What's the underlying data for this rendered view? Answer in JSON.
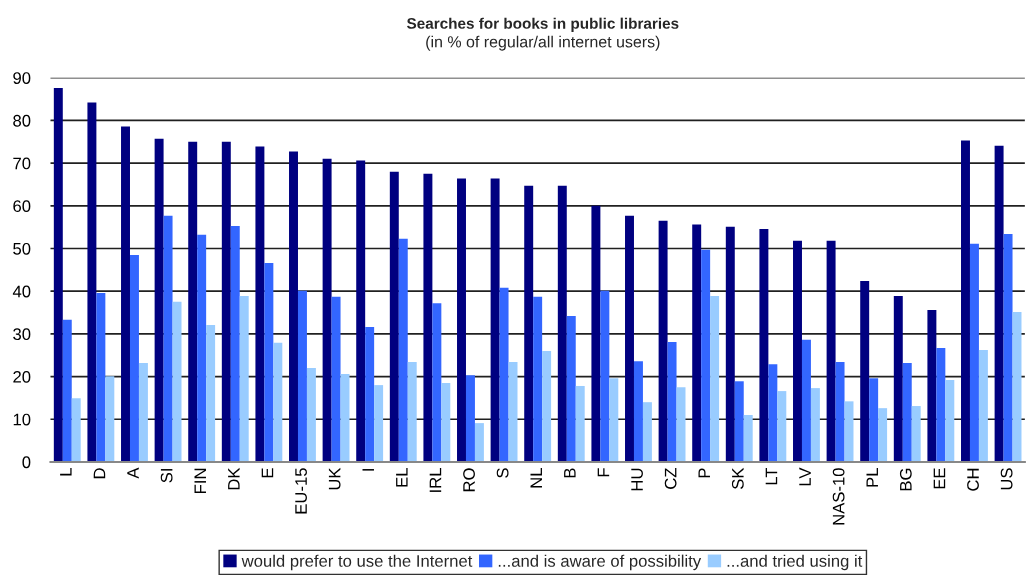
{
  "chart_data": {
    "type": "bar",
    "title": "Searches for books in public libraries",
    "subtitle": "(in % of regular/all internet users)",
    "categories": [
      "L",
      "D",
      "A",
      "SI",
      "FIN",
      "DK",
      "E",
      "EU-15",
      "UK",
      "I",
      "EL",
      "IRL",
      "RO",
      "S",
      "NL",
      "B",
      "F",
      "HU",
      "CZ",
      "P",
      "SK",
      "LT",
      "LV",
      "NAS-10",
      "PL",
      "BG",
      "EE",
      "CH",
      "US"
    ],
    "series": [
      {
        "name": "would prefer to use the Internet",
        "color": "#000080",
        "values": [
          87.6,
          84.2,
          78.6,
          75.7,
          75.0,
          75.0,
          73.9,
          72.7,
          71.0,
          70.6,
          68.0,
          67.5,
          66.4,
          66.4,
          64.7,
          64.7,
          60.0,
          57.7,
          56.5,
          55.6,
          55.1,
          54.6,
          51.8,
          51.8,
          42.4,
          38.9,
          35.6,
          75.3,
          74.1
        ]
      },
      {
        "name": "...and is aware of possibility",
        "color": "#3366ff",
        "values": [
          33.3,
          39.6,
          48.5,
          57.7,
          53.2,
          55.3,
          46.6,
          40.1,
          38.7,
          31.6,
          52.3,
          37.2,
          20.3,
          40.8,
          38.7,
          34.2,
          40.1,
          23.6,
          28.1,
          49.7,
          18.9,
          22.9,
          28.6,
          23.4,
          19.6,
          23.2,
          26.7,
          51.1,
          53.4
        ]
      },
      {
        "name": "...and tried using it",
        "color": "#99ccff",
        "values": [
          14.9,
          20.1,
          23.2,
          37.5,
          32.1,
          38.9,
          27.9,
          22.0,
          20.6,
          18.0,
          23.4,
          18.5,
          9.1,
          23.4,
          26.0,
          17.8,
          19.6,
          14.0,
          17.5,
          38.9,
          11.0,
          16.6,
          17.3,
          14.2,
          12.6,
          13.1,
          19.2,
          26.2,
          35.1
        ]
      }
    ],
    "ylim": [
      0,
      90
    ],
    "yticks": [
      0,
      10,
      20,
      30,
      40,
      50,
      60,
      70,
      80,
      90
    ],
    "grid": "y",
    "legend": "bottom"
  }
}
